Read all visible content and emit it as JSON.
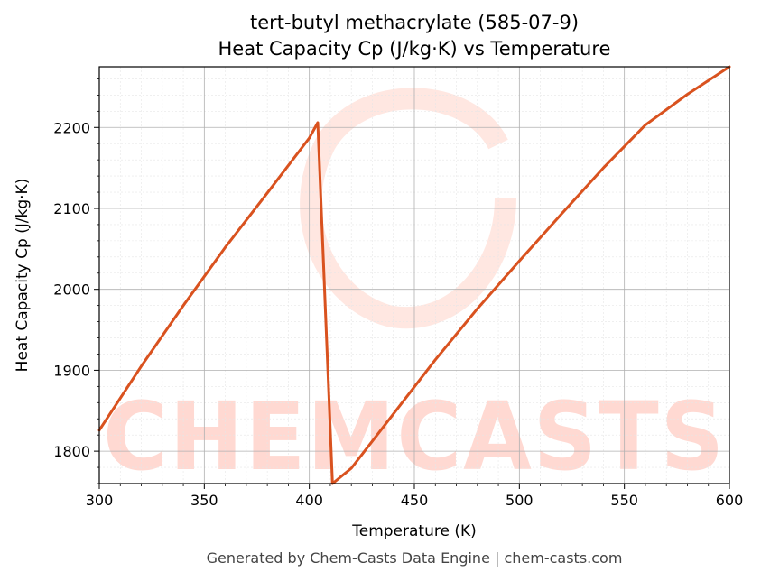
{
  "chart_data": {
    "type": "line",
    "title": "tert-butyl methacrylate (585-07-9)",
    "subtitle": "Heat Capacity Cp (J/kg·K) vs Temperature",
    "xlabel": "Temperature (K)",
    "ylabel": "Heat Capacity Cp (J/kg·K)",
    "xlim": [
      300,
      600
    ],
    "ylim": [
      1760,
      2275
    ],
    "xticks": [
      300,
      350,
      400,
      450,
      500,
      550,
      600
    ],
    "yticks": [
      1800,
      1900,
      2000,
      2100,
      2200
    ],
    "grid": true,
    "series": [
      {
        "color": "#d9521f",
        "points": [
          [
            300,
            1826
          ],
          [
            320,
            1905
          ],
          [
            340,
            1980
          ],
          [
            360,
            2052
          ],
          [
            380,
            2119
          ],
          [
            400,
            2187
          ],
          [
            404,
            2206
          ],
          [
            411,
            1760
          ],
          [
            420,
            1779
          ],
          [
            440,
            1846
          ],
          [
            460,
            1913
          ],
          [
            480,
            1976
          ],
          [
            500,
            2035
          ],
          [
            520,
            2093
          ],
          [
            540,
            2150
          ],
          [
            560,
            2203
          ],
          [
            580,
            2241
          ],
          [
            600,
            2275
          ]
        ]
      }
    ]
  },
  "watermark": {
    "text": "CHEMCASTS",
    "color": "#ffd9d2"
  },
  "footer": "Generated by Chem-Casts Data Engine | chem-casts.com"
}
